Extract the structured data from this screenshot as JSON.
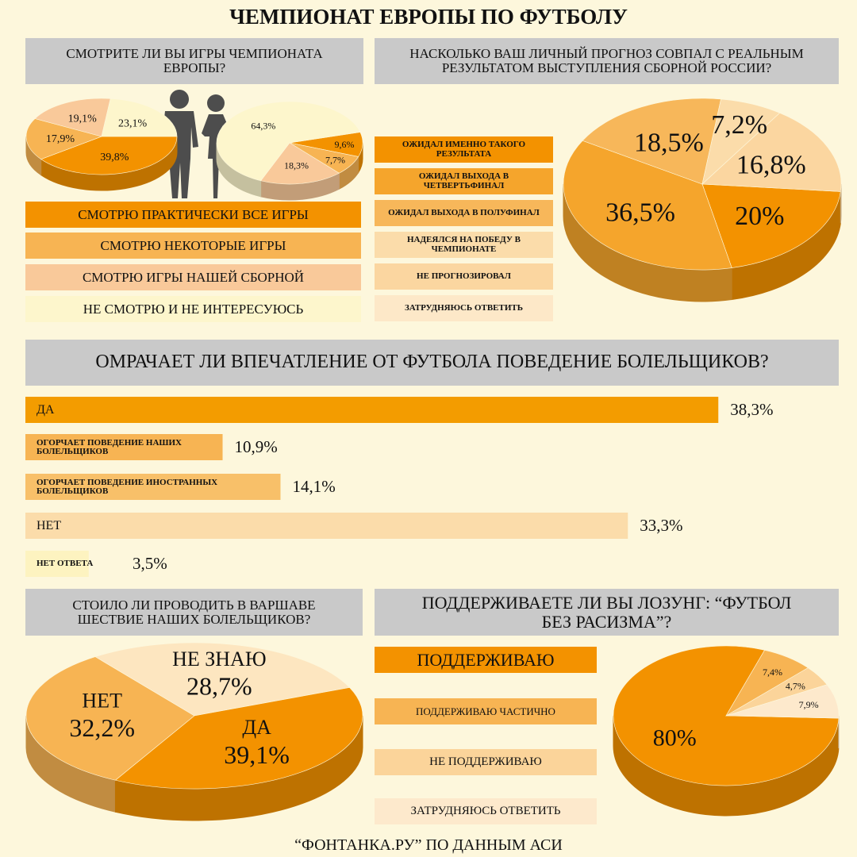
{
  "title": "ЧЕМПИОНАТ ЕВРОПЫ ПО ФУТБОЛУ",
  "footer": "“ФОНТАНКА.РУ” ПО ДАННЫМ АСИ",
  "chart_data": [
    {
      "type": "pie",
      "title": "СМОТРИТЕ ЛИ ВЫ ИГРЫ ЧЕМПИОНАТА ЕВРОПЫ?",
      "categories": [
        "СМОТРЮ ПРАКТИЧЕСКИ ВСЕ ИГРЫ",
        "СМОТРЮ НЕКОТОРЫЕ ИГРЫ",
        "СМОТРЮ ИГРЫ НАШЕЙ СБОРНОЙ",
        "НЕ СМОТРЮ И НЕ ИНТЕРЕСУЮСЬ"
      ],
      "colors": [
        "#f39200",
        "#f7b453",
        "#f9c99a",
        "#fdf6cc"
      ],
      "series": [
        {
          "values": [
            39.8,
            17.9,
            19.1,
            23.1
          ],
          "value_labels": [
            "39,8%",
            "17,9%",
            "19,1%",
            "23,1%"
          ]
        },
        {
          "values": [
            9.6,
            7.7,
            18.3,
            64.3
          ],
          "value_labels": [
            "9,6%",
            "7,7%",
            "18,3%",
            "64,3%"
          ]
        }
      ]
    },
    {
      "type": "pie",
      "title": "НАСКОЛЬКО ВАШ ЛИЧНЫЙ ПРОГНОЗ СОВПАЛ С  РЕАЛЬНЫМ РЕЗУЛЬТАТОМ ВЫСТУПЛЕНИЯ СБОРНОЙ РОССИИ?",
      "categories": [
        "ОЖИДАЛ ИМЕННО ТАКОГО РЕЗУЛЬТАТА",
        "ОЖИДАЛ ВЫХОДА В ЧЕТВЕРТЬФИНАЛ",
        "ОЖИДАЛ ВЫХОДА В ПОЛУФИНАЛ",
        "НАДЕЯЛСЯ НА ПОБЕДУ В ЧЕМПИОНАТЕ",
        "НЕ ПРОГНОЗИРОВАЛ",
        "ЗАТРУДНЯЮСЬ ОТВЕТИТЬ"
      ],
      "colors": [
        "#f39200",
        "#f5a52c",
        "#f7b75a",
        "#fbdcaa",
        "#fbd6a0",
        "#fde8c8"
      ],
      "series": [
        {
          "values": [
            20,
            36.5,
            18.5,
            7.2,
            16.8,
            null
          ],
          "value_labels": [
            "20%",
            "36,5%",
            "18,5%",
            "7,2%",
            "16,8%",
            null
          ]
        }
      ]
    },
    {
      "type": "bar",
      "title": "ОМРАЧАЕТ ЛИ ВПЕЧАТЛЕНИЕ ОТ ФУТБОЛА ПОВЕДЕНИЕ БОЛЕЛЬЩИКОВ?",
      "categories": [
        "ДА",
        "ОГОРЧАЕТ ПОВЕДЕНИЕ НАШИХ БОЛЕЛЬЩИКОВ",
        "ОГОРЧАЕТ ПОВЕДЕНИЕ ИНОСТРАННЫХ БОЛЕЛЬЩИКОВ",
        "НЕТ",
        "НЕТ ОТВЕТА"
      ],
      "colors": [
        "#f39c00",
        "#f7b453",
        "#f8c069",
        "#fbdcaa",
        "#fdf3c0"
      ],
      "values": [
        38.3,
        10.9,
        14.1,
        33.3,
        3.5
      ],
      "value_labels": [
        "38,3%",
        "10,9%",
        "14,1%",
        "33,3%",
        "3,5%"
      ]
    },
    {
      "type": "pie",
      "title": "СТОИЛО ЛИ ПРОВОДИТЬ В ВАРШАВЕ ШЕСТВИЕ НАШИХ БОЛЕЛЬЩИКОВ?",
      "categories": [
        "НЕТ",
        "НЕ ЗНАЮ",
        "ДА"
      ],
      "colors": [
        "#f7b453",
        "#fde6c0",
        "#f39200"
      ],
      "series": [
        {
          "values": [
            32.2,
            28.7,
            39.1
          ],
          "value_labels": [
            "32,2%",
            "28,7%",
            "39,1%"
          ]
        }
      ]
    },
    {
      "type": "pie",
      "title": "ПОДДЕРЖИВАЕТЕ ЛИ ВЫ ЛОЗУНГ: “ФУТБОЛ БЕЗ РАСИЗМА”?",
      "categories": [
        "ПОДДЕРЖИВАЮ",
        "ПОДДЕРЖИВАЮ ЧАСТИЧНО",
        "НЕ ПОДДЕРЖИВАЮ",
        "ЗАТРУДНЯЮСЬ ОТВЕТИТЬ"
      ],
      "colors": [
        "#f39200",
        "#f7b453",
        "#fbd49a",
        "#fde9cc"
      ],
      "series": [
        {
          "values": [
            80,
            7.4,
            4.7,
            7.9
          ],
          "value_labels": [
            "80%",
            "7,4%",
            "4,7%",
            "7,9%"
          ]
        }
      ]
    }
  ]
}
